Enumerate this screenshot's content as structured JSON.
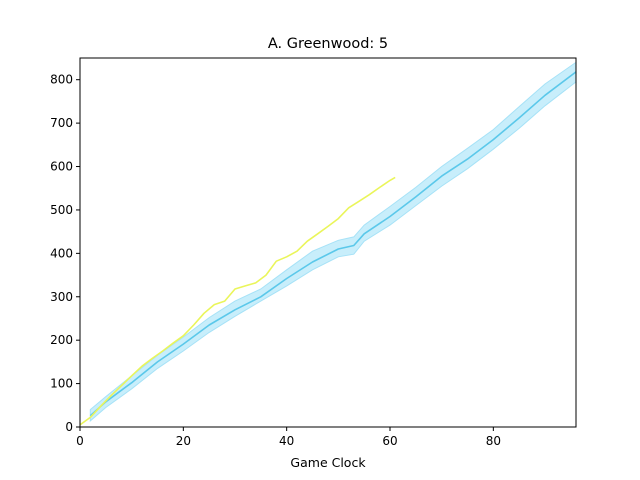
{
  "chart_data": {
    "type": "line",
    "title": "A. Greenwood: 5",
    "xlabel": "Game Clock",
    "ylabel": "",
    "xlim": [
      0,
      96
    ],
    "ylim": [
      0,
      850
    ],
    "xticks": [
      0,
      20,
      40,
      60,
      80
    ],
    "yticks": [
      0,
      100,
      200,
      300,
      400,
      500,
      600,
      700,
      800
    ],
    "grid": false,
    "colors": {
      "band": "#c8eefb",
      "band_edge": "#a6e2f7",
      "mean": "#5bc8ea",
      "player": "#eaf55a"
    },
    "series": [
      {
        "role": "band",
        "x": [
          2,
          5,
          10,
          15,
          20,
          25,
          30,
          35,
          40,
          45,
          50,
          53,
          55,
          60,
          65,
          70,
          75,
          80,
          85,
          90,
          96
        ],
        "lower": [
          14,
          45,
          88,
          135,
          175,
          218,
          255,
          290,
          325,
          362,
          392,
          398,
          428,
          465,
          510,
          555,
          595,
          640,
          688,
          740,
          795
        ],
        "upper": [
          40,
          70,
          118,
          165,
          207,
          252,
          290,
          318,
          362,
          405,
          430,
          438,
          465,
          508,
          552,
          600,
          642,
          685,
          738,
          790,
          840
        ]
      },
      {
        "role": "mean",
        "x": [
          2,
          5,
          10,
          15,
          20,
          25,
          30,
          35,
          40,
          45,
          50,
          53,
          55,
          60,
          65,
          70,
          75,
          80,
          85,
          90,
          96
        ],
        "y": [
          26,
          58,
          102,
          150,
          191,
          235,
          270,
          300,
          342,
          380,
          410,
          418,
          445,
          485,
          530,
          578,
          617,
          662,
          712,
          764,
          818
        ]
      },
      {
        "role": "player",
        "x": [
          0,
          2,
          4,
          6,
          8,
          10,
          12,
          14,
          16,
          18,
          20,
          22,
          24,
          26,
          28,
          30,
          32,
          34,
          36,
          38,
          40,
          42,
          44,
          46,
          48,
          50,
          52,
          54,
          56,
          58,
          60,
          61
        ],
        "y": [
          5,
          22,
          48,
          72,
          95,
          118,
          140,
          158,
          175,
          193,
          210,
          235,
          262,
          282,
          290,
          318,
          325,
          332,
          350,
          382,
          392,
          405,
          428,
          445,
          462,
          480,
          505,
          520,
          535,
          552,
          568,
          575
        ]
      }
    ]
  }
}
